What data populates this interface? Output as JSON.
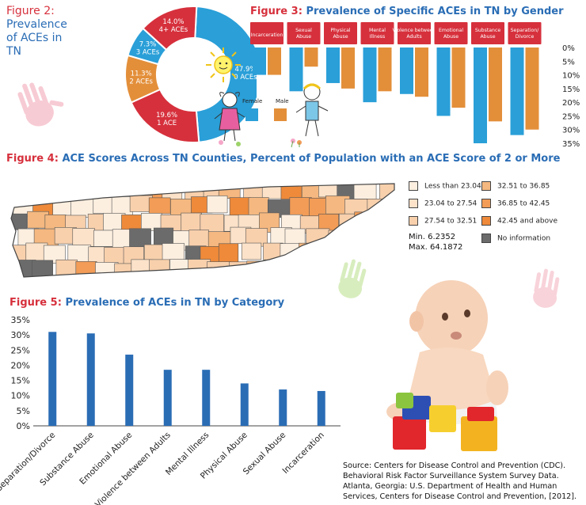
{
  "figure2": {
    "title_num": "Figure 2:",
    "title_text": "Prevalence of ACEs in TN",
    "chart_data": {
      "type": "pie",
      "labels": [
        "0 ACEs",
        "1 ACE",
        "2 ACEs",
        "3 ACEs",
        "4+ ACEs"
      ],
      "values": [
        47.9,
        19.6,
        11.3,
        7.3,
        14.0
      ],
      "display": [
        "47.9%\n0 ACEs",
        "19.6%\n1 ACE",
        "11.3%\n2 ACEs",
        "7.3%\n3 ACEs",
        "14.0%\n4+ ACEs"
      ],
      "colors": [
        "#2a9fd8",
        "#d6303c",
        "#e38f3a",
        "#2a9fd8",
        "#d6303c"
      ]
    }
  },
  "figure3": {
    "title_num": "Figure 3:",
    "title_text": "Prevalence of Specific ACEs in TN by Gender",
    "legend": {
      "female": "Female",
      "male": "Male"
    },
    "chart_data": {
      "type": "bar",
      "categories": [
        "Incarceration",
        "Sexual Abuse",
        "Physical Abuse",
        "Mental Illness",
        "Violence between Adults",
        "Emotional Abuse",
        "Substance Abuse",
        "Separation/ Divorce"
      ],
      "series": [
        {
          "name": "Female",
          "values": [
            10,
            16,
            13,
            20,
            17,
            25,
            35,
            32
          ]
        },
        {
          "name": "Male",
          "values": [
            10,
            7,
            15,
            16,
            18,
            22,
            27,
            30
          ]
        }
      ],
      "yticks": [
        "0%",
        "5%",
        "10%",
        "15%",
        "20%",
        "25%",
        "30%",
        "35%"
      ],
      "ylim": [
        0,
        35
      ],
      "orientation": "hanging"
    }
  },
  "figure4": {
    "title_num": "Figure 4:",
    "title_text": "ACE Scores Across TN Counties, Percent of Population with an ACE Score of 2 or More",
    "legend": [
      {
        "label": "Less than 23.04",
        "color": "#fcefe0"
      },
      {
        "label": "23.04 to 27.54",
        "color": "#fbe2c9"
      },
      {
        "label": "27.54 to 32.51",
        "color": "#f8d0ac"
      },
      {
        "label": "32.51 to 36.85",
        "color": "#f5b880"
      },
      {
        "label": "36.85 to 42.45",
        "color": "#f29c57"
      },
      {
        "label": "42.45 and above",
        "color": "#ee8a3a"
      },
      {
        "label": "No information",
        "color": "#6b6b6b"
      }
    ],
    "min_label": "Min. 6.2352",
    "max_label": "Max. 64.1872"
  },
  "figure5": {
    "title_num": "Figure 5:",
    "title_text": "Prevalence of ACEs in TN by Category",
    "chart_data": {
      "type": "bar",
      "categories": [
        "Separation/Divorce",
        "Substance Abuse",
        "Emotional Abuse",
        "Violence between Adults",
        "Mental Illness",
        "Physical Abuse",
        "Sexual Abuse",
        "Incarceration"
      ],
      "values": [
        31,
        30.5,
        23.5,
        18.5,
        18.5,
        14,
        12,
        11.5
      ],
      "yticks": [
        "0%",
        "5%",
        "10%",
        "15%",
        "20%",
        "25%",
        "30%",
        "35%"
      ],
      "ylim": [
        0,
        35
      ],
      "color": "#2a6db5"
    }
  },
  "source": {
    "text": "Source: Centers for Disease Control and Prevention (CDC). Behavioral Risk Factor Surveillance System Survey Data. Atlanta, Georgia: U.S. Department of Health and Human Services, Centers for Disease Control and Prevention, [2012]."
  }
}
